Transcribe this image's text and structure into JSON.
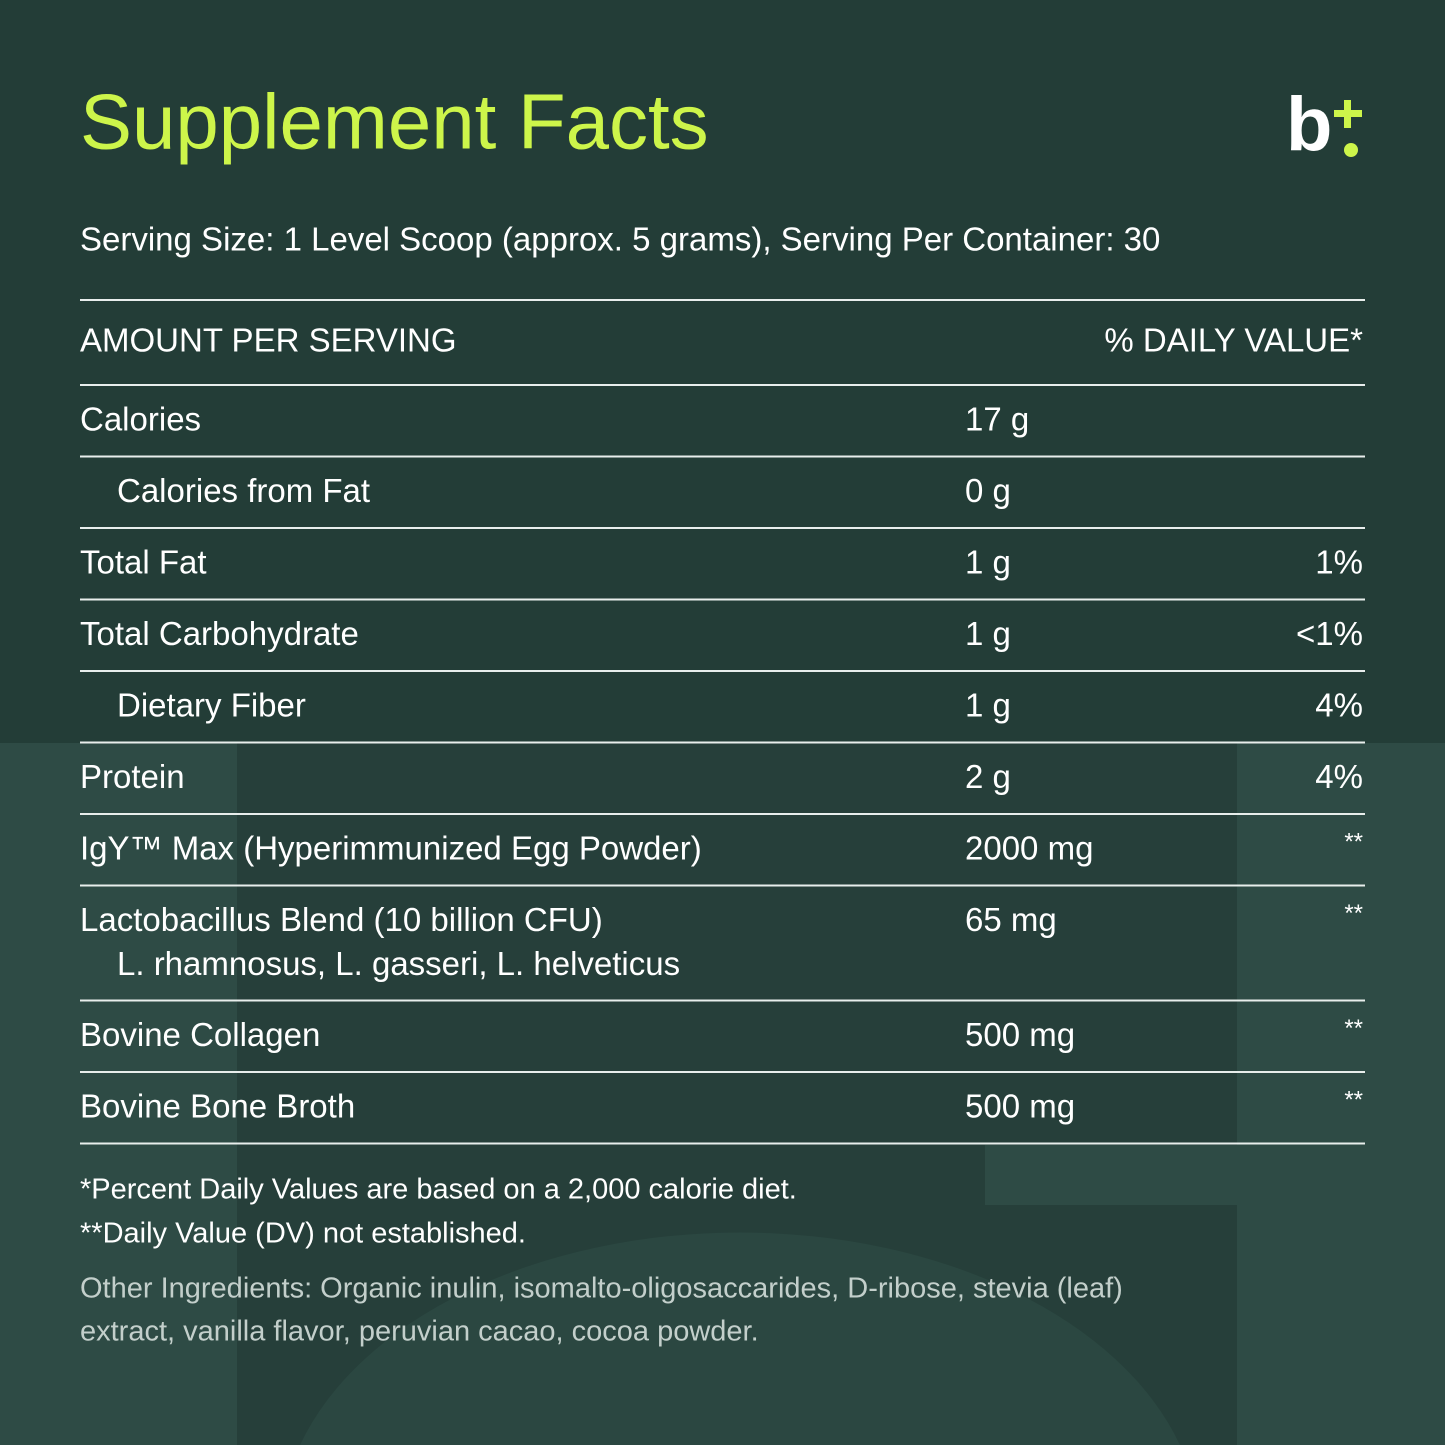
{
  "header": {
    "title": "Supplement Facts",
    "logo": "b",
    "serving": "Serving Size: 1 Level Scoop (approx. 5 grams), Serving Per Container: 30"
  },
  "table": {
    "columns": [
      "AMOUNT PER SERVING",
      "% DAILY VALUE*"
    ],
    "rows": [
      {
        "name": "Calories",
        "amount": "17 g"
      },
      {
        "name": "Calories from Fat",
        "amount": "0 g",
        "indent": true
      },
      {
        "name": "Total Fat",
        "amount": "1 g",
        "daily_value": "1%"
      },
      {
        "name": "Total Carbohydrate",
        "amount": "1 g",
        "daily_value": "<1%"
      },
      {
        "name": "Dietary Fiber",
        "amount": "1 g",
        "daily_value": "4%",
        "indent": true
      },
      {
        "name": "Protein",
        "amount": "2 g",
        "daily_value": "4%"
      },
      {
        "name": "IgY™ Max (Hyperimmunized Egg Powder)",
        "amount": "2000 mg",
        "daily_value": "**"
      },
      {
        "name": "Lactobacillus Blend (10 billion CFU)",
        "detail": "L. rhamnosus, L. gasseri, L. helveticus",
        "amount": "65 mg",
        "daily_value": "**"
      },
      {
        "name": "Bovine Collagen",
        "amount": "500 mg",
        "daily_value": "**"
      },
      {
        "name": "Bovine Bone Broth",
        "amount": "500 mg",
        "daily_value": "**"
      }
    ]
  },
  "footnotes": [
    "*Percent Daily Values are based on a 2,000 calorie diet.",
    "**Daily Value (DV) not established."
  ],
  "other_ingredients": [
    "Other Ingredients: Organic inulin, isomalto-oligosaccarides, D-ribose, stevia (leaf)",
    "extract, vanilla flavor, peruvian cacao, cocoa powder."
  ]
}
